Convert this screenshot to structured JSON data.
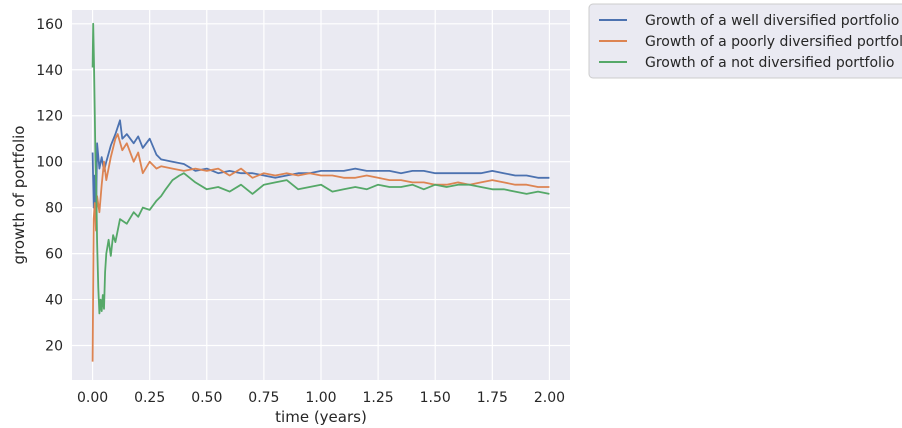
{
  "chart_data": {
    "type": "line",
    "title": "",
    "xlabel": "time (years)",
    "ylabel": "growth of portfolio",
    "xlim": [
      -0.09,
      2.09
    ],
    "ylim": [
      5,
      166
    ],
    "xticks": [
      0.0,
      0.25,
      0.5,
      0.75,
      1.0,
      1.25,
      1.5,
      1.75,
      2.0
    ],
    "xtick_labels": [
      "0.00",
      "0.25",
      "0.50",
      "0.75",
      "1.00",
      "1.25",
      "1.50",
      "1.75",
      "2.00"
    ],
    "yticks": [
      20,
      40,
      60,
      80,
      100,
      120,
      140,
      160
    ],
    "ytick_labels": [
      "20",
      "40",
      "60",
      "80",
      "100",
      "120",
      "140",
      "160"
    ],
    "grid": true,
    "legend_position": "outside-top-right",
    "background_color": "#eaeaf2",
    "series": [
      {
        "name": "Growth of a well diversified portfolio",
        "color": "#4c72b0",
        "x": [
          0.0,
          0.005,
          0.01,
          0.015,
          0.02,
          0.03,
          0.04,
          0.05,
          0.06,
          0.08,
          0.1,
          0.12,
          0.13,
          0.15,
          0.18,
          0.2,
          0.22,
          0.25,
          0.28,
          0.3,
          0.35,
          0.4,
          0.45,
          0.5,
          0.55,
          0.6,
          0.65,
          0.7,
          0.75,
          0.8,
          0.85,
          0.9,
          0.95,
          1.0,
          1.05,
          1.1,
          1.15,
          1.2,
          1.25,
          1.3,
          1.35,
          1.4,
          1.45,
          1.5,
          1.55,
          1.6,
          1.65,
          1.7,
          1.75,
          1.8,
          1.85,
          1.9,
          1.95,
          2.0
        ],
        "y": [
          104,
          80,
          94,
          75,
          108,
          97,
          102,
          96,
          100,
          107,
          112,
          118,
          110,
          112,
          108,
          111,
          106,
          110,
          103,
          101,
          100,
          99,
          96,
          97,
          95,
          96,
          95,
          95,
          94,
          93,
          94,
          95,
          95,
          96,
          96,
          96,
          97,
          96,
          96,
          96,
          95,
          96,
          96,
          95,
          95,
          95,
          95,
          95,
          96,
          95,
          94,
          94,
          93,
          93
        ]
      },
      {
        "name": "Growth of a poorly diversified portfolio",
        "color": "#dd8452",
        "x": [
          0.0,
          0.005,
          0.01,
          0.015,
          0.02,
          0.03,
          0.04,
          0.05,
          0.06,
          0.08,
          0.1,
          0.11,
          0.13,
          0.15,
          0.18,
          0.2,
          0.22,
          0.25,
          0.28,
          0.3,
          0.35,
          0.4,
          0.45,
          0.5,
          0.55,
          0.6,
          0.65,
          0.7,
          0.75,
          0.8,
          0.85,
          0.9,
          0.95,
          1.0,
          1.05,
          1.1,
          1.15,
          1.2,
          1.25,
          1.3,
          1.35,
          1.4,
          1.45,
          1.5,
          1.55,
          1.6,
          1.65,
          1.7,
          1.75,
          1.8,
          1.85,
          1.9,
          1.95,
          2.0
        ],
        "y": [
          13,
          75,
          82,
          70,
          85,
          78,
          90,
          100,
          92,
          102,
          110,
          112,
          105,
          108,
          100,
          104,
          95,
          100,
          97,
          98,
          97,
          96,
          97,
          96,
          97,
          94,
          97,
          93,
          95,
          94,
          95,
          94,
          95,
          94,
          94,
          93,
          93,
          94,
          93,
          92,
          92,
          91,
          91,
          90,
          90,
          91,
          90,
          91,
          92,
          91,
          90,
          90,
          89,
          89
        ]
      },
      {
        "name": "Growth of a not diversified portfolio",
        "color": "#55a868",
        "x": [
          0.0,
          0.003,
          0.006,
          0.01,
          0.013,
          0.016,
          0.02,
          0.025,
          0.03,
          0.035,
          0.04,
          0.045,
          0.05,
          0.055,
          0.06,
          0.07,
          0.08,
          0.09,
          0.1,
          0.12,
          0.15,
          0.18,
          0.2,
          0.22,
          0.25,
          0.28,
          0.3,
          0.32,
          0.35,
          0.38,
          0.4,
          0.45,
          0.5,
          0.55,
          0.6,
          0.65,
          0.7,
          0.75,
          0.8,
          0.85,
          0.9,
          0.95,
          1.0,
          1.05,
          1.1,
          1.15,
          1.2,
          1.25,
          1.3,
          1.35,
          1.4,
          1.45,
          1.5,
          1.55,
          1.6,
          1.65,
          1.7,
          1.75,
          1.8,
          1.85,
          1.9,
          1.95,
          2.0
        ],
        "y": [
          141,
          160,
          145,
          120,
          100,
          90,
          65,
          45,
          34,
          40,
          35,
          42,
          36,
          52,
          60,
          66,
          59,
          68,
          65,
          75,
          73,
          78,
          76,
          80,
          79,
          83,
          85,
          88,
          92,
          94,
          95,
          91,
          88,
          89,
          87,
          90,
          86,
          90,
          91,
          92,
          88,
          89,
          90,
          87,
          88,
          89,
          88,
          90,
          89,
          89,
          90,
          88,
          90,
          89,
          90,
          90,
          89,
          88,
          88,
          87,
          86,
          87,
          86
        ]
      }
    ]
  }
}
